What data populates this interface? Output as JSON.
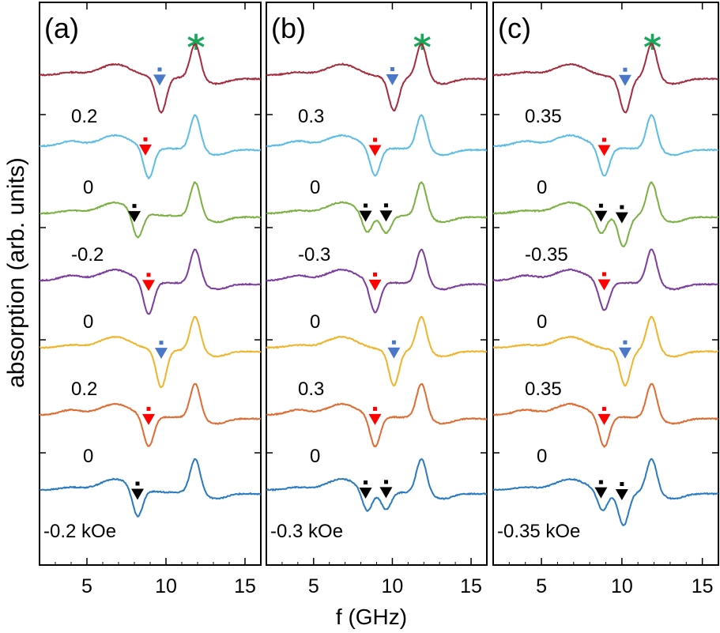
{
  "figure": {
    "ylabel": "absorption (arb. units)",
    "xlabel": "f (GHz)",
    "star_color": "#1aa65a",
    "marker_colors": {
      "black": "#000000",
      "red": "#ff0000",
      "blue": "#4a78c8"
    },
    "series_colors": [
      "#a52a3c",
      "#5bbce8",
      "#7ab040",
      "#7b3c9e",
      "#f0b32a",
      "#e06a30",
      "#2979c0"
    ]
  },
  "chart_data": [
    {
      "type": "line",
      "panel": "(a)",
      "xlim": [
        2,
        16
      ],
      "xticks": [
        5,
        10,
        15
      ],
      "field_labels": [
        "0.2",
        "0",
        "-0.2",
        "0",
        "0.2",
        "0",
        "-0.2 kOe"
      ],
      "series": [
        {
          "dip": [
            {
              "f": 9.7,
              "depth": 1.6
            }
          ],
          "marker": {
            "f": 9.6,
            "color": "blue"
          }
        },
        {
          "dip": [
            {
              "f": 8.9,
              "depth": 1.4
            }
          ],
          "marker": {
            "f": 8.7,
            "color": "red"
          }
        },
        {
          "dip": [
            {
              "f": 8.2,
              "depth": 1.2
            }
          ],
          "marker": {
            "f": 8.0,
            "color": "black"
          }
        },
        {
          "dip": [
            {
              "f": 8.9,
              "depth": 1.5
            }
          ],
          "marker": {
            "f": 8.9,
            "color": "red"
          }
        },
        {
          "dip": [
            {
              "f": 9.7,
              "depth": 1.7
            }
          ],
          "marker": {
            "f": 9.7,
            "color": "blue"
          }
        },
        {
          "dip": [
            {
              "f": 8.9,
              "depth": 1.4
            }
          ],
          "marker": {
            "f": 8.9,
            "color": "red"
          }
        },
        {
          "dip": [
            {
              "f": 8.2,
              "depth": 1.3
            }
          ],
          "marker": {
            "f": 8.2,
            "color": "black"
          }
        }
      ]
    },
    {
      "type": "line",
      "panel": "(b)",
      "xlim": [
        2,
        16
      ],
      "xticks": [
        5,
        10,
        15
      ],
      "field_labels": [
        "0.3",
        "0",
        "-0.3",
        "0",
        "0.3",
        "0",
        "-0.3 kOe"
      ],
      "series": [
        {
          "dip": [
            {
              "f": 10.1,
              "depth": 1.5
            }
          ],
          "marker": {
            "f": 10.0,
            "color": "blue"
          }
        },
        {
          "dip": [
            {
              "f": 8.9,
              "depth": 1.3
            }
          ],
          "marker": {
            "f": 8.9,
            "color": "red"
          }
        },
        {
          "dip": [
            {
              "f": 8.4,
              "depth": 0.9
            },
            {
              "f": 9.6,
              "depth": 0.8
            }
          ],
          "marker": {
            "f": 8.3,
            "color": "black"
          },
          "marker2": {
            "f": 9.6,
            "color": "black"
          }
        },
        {
          "dip": [
            {
              "f": 8.9,
              "depth": 1.4
            }
          ],
          "marker": {
            "f": 8.9,
            "color": "red"
          }
        },
        {
          "dip": [
            {
              "f": 10.1,
              "depth": 1.6
            }
          ],
          "marker": {
            "f": 10.1,
            "color": "blue"
          }
        },
        {
          "dip": [
            {
              "f": 8.9,
              "depth": 1.4
            }
          ],
          "marker": {
            "f": 8.9,
            "color": "red"
          }
        },
        {
          "dip": [
            {
              "f": 8.4,
              "depth": 1.0
            },
            {
              "f": 9.6,
              "depth": 0.8
            }
          ],
          "marker": {
            "f": 8.3,
            "color": "black"
          },
          "marker2": {
            "f": 9.6,
            "color": "black"
          }
        }
      ]
    },
    {
      "type": "line",
      "panel": "(c)",
      "xlim": [
        2,
        16
      ],
      "xticks": [
        5,
        10,
        15
      ],
      "field_labels": [
        "0.35",
        "0",
        "-0.35",
        "0",
        "0.35",
        "0",
        "-0.35 kOe"
      ],
      "series": [
        {
          "dip": [
            {
              "f": 10.2,
              "depth": 1.6
            }
          ],
          "marker": {
            "f": 10.2,
            "color": "blue"
          }
        },
        {
          "dip": [
            {
              "f": 8.9,
              "depth": 1.3
            }
          ],
          "marker": {
            "f": 8.9,
            "color": "red"
          }
        },
        {
          "dip": [
            {
              "f": 8.7,
              "depth": 0.9
            },
            {
              "f": 10.1,
              "depth": 1.4
            }
          ],
          "marker": {
            "f": 8.7,
            "color": "black"
          },
          "marker2": {
            "f": 10.0,
            "color": "black"
          }
        },
        {
          "dip": [
            {
              "f": 8.9,
              "depth": 1.3
            }
          ],
          "marker": {
            "f": 8.9,
            "color": "red"
          }
        },
        {
          "dip": [
            {
              "f": 10.2,
              "depth": 1.6
            }
          ],
          "marker": {
            "f": 10.2,
            "color": "blue"
          }
        },
        {
          "dip": [
            {
              "f": 8.9,
              "depth": 1.4
            }
          ],
          "marker": {
            "f": 8.9,
            "color": "red"
          }
        },
        {
          "dip": [
            {
              "f": 8.8,
              "depth": 0.9
            },
            {
              "f": 10.1,
              "depth": 1.5
            }
          ],
          "marker": {
            "f": 8.7,
            "color": "black"
          },
          "marker2": {
            "f": 10.0,
            "color": "black"
          }
        }
      ]
    }
  ]
}
